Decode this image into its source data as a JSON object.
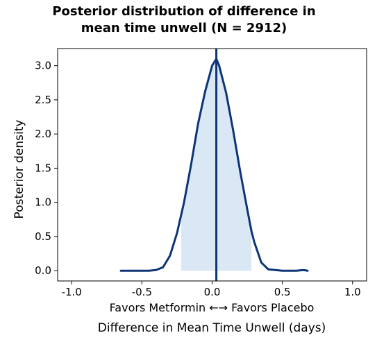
{
  "chart_data": {
    "type": "area",
    "title_line1": "Posterior distribution of difference in",
    "title_line2": "mean time unwell (N = 2912)",
    "ylabel": "Posterior density",
    "x_sublabel": "Favors Metformin ←→ Favors Placebo",
    "xlabel": "Difference in Mean Time Unwell (days)",
    "xlim": [
      -1.1,
      1.1
    ],
    "ylim": [
      -0.15,
      3.25
    ],
    "xticks": [
      "-1.0",
      "-0.5",
      "0.0",
      "0.5",
      "1.0"
    ],
    "yticks": [
      "0.0",
      "0.5",
      "1.0",
      "1.5",
      "2.0",
      "2.5",
      "3.0"
    ],
    "vline_x": 0.03,
    "shaded_interval": [
      -0.22,
      0.28
    ],
    "line_color": "#0d3575",
    "fill_color": "#dae8f6",
    "curve": {
      "x": [
        -0.65,
        -0.6,
        -0.55,
        -0.5,
        -0.45,
        -0.4,
        -0.35,
        -0.3,
        -0.25,
        -0.22,
        -0.2,
        -0.15,
        -0.1,
        -0.05,
        0.0,
        0.03,
        0.05,
        0.1,
        0.15,
        0.2,
        0.25,
        0.28,
        0.3,
        0.35,
        0.4,
        0.45,
        0.5,
        0.55,
        0.6,
        0.65,
        0.68
      ],
      "y": [
        0.0,
        0.0,
        0.0,
        0.0,
        0.0,
        0.01,
        0.05,
        0.22,
        0.55,
        0.82,
        1.0,
        1.55,
        2.15,
        2.62,
        3.0,
        3.1,
        3.0,
        2.6,
        2.05,
        1.45,
        0.9,
        0.58,
        0.42,
        0.12,
        0.02,
        0.01,
        0.0,
        0.0,
        0.0,
        0.01,
        0.0
      ]
    }
  }
}
